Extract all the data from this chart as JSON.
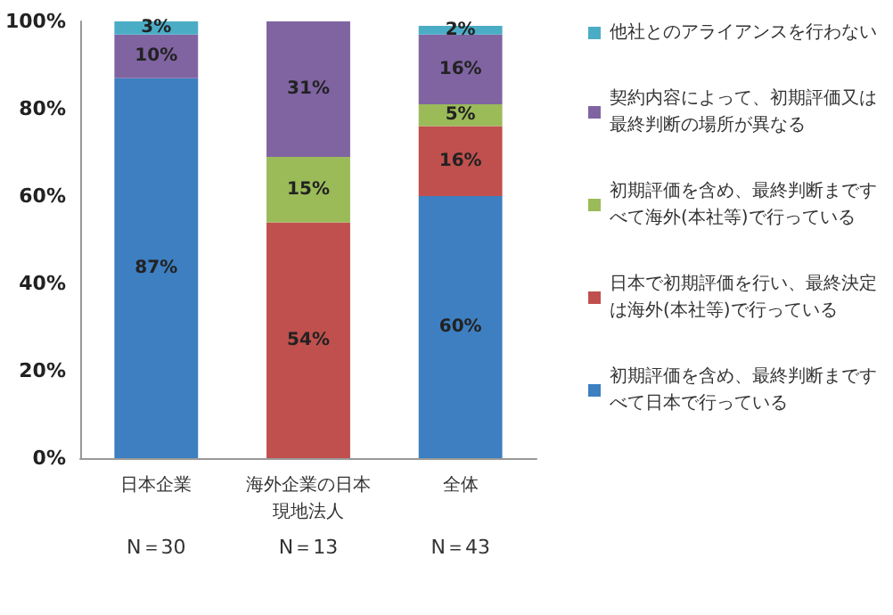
{
  "chart_data": {
    "type": "bar",
    "stacked": true,
    "categories": [
      "日本企業",
      "海外企業の日本現地法人",
      "全体"
    ],
    "series": [
      {
        "name": "初期評価を含め、最終判断まですべて日本で行っている",
        "color": "#3d7fc1",
        "values": [
          87,
          0,
          60
        ],
        "value_labels": [
          "87%",
          null,
          "60%"
        ]
      },
      {
        "name": "日本で初期評価を行い、最終決定は海外(本社等)で行っている",
        "color": "#c0504d",
        "values": [
          0,
          54,
          16
        ],
        "value_labels": [
          null,
          "54%",
          "16%"
        ]
      },
      {
        "name": "初期評価を含め、最終判断まですべて海外(本社等)で行っている",
        "color": "#9bbb59",
        "values": [
          0,
          15,
          5
        ],
        "value_labels": [
          null,
          "15%",
          "5%"
        ]
      },
      {
        "name": "契約内容によって、初期評価又は最終判断の場所が異なる",
        "color": "#8064a2",
        "values": [
          10,
          31,
          16
        ],
        "value_labels": [
          "10%",
          "31%",
          "16%"
        ]
      },
      {
        "name": "他社とのアライアンスを行わない",
        "color": "#4bacc6",
        "values": [
          3,
          0,
          2
        ],
        "value_labels": [
          "3%",
          null,
          "2%"
        ]
      }
    ],
    "ylim": [
      0,
      100
    ],
    "yticks": [
      {
        "value": 0,
        "label": "0%"
      },
      {
        "value": 20,
        "label": "20%"
      },
      {
        "value": 40,
        "label": "40%"
      },
      {
        "value": 60,
        "label": "60%"
      },
      {
        "value": 80,
        "label": "80%"
      },
      {
        "value": 100,
        "label": "100%"
      }
    ],
    "grid": false,
    "legend": "right",
    "annotations": [
      "N＝30",
      "N＝13",
      "N＝43"
    ]
  }
}
